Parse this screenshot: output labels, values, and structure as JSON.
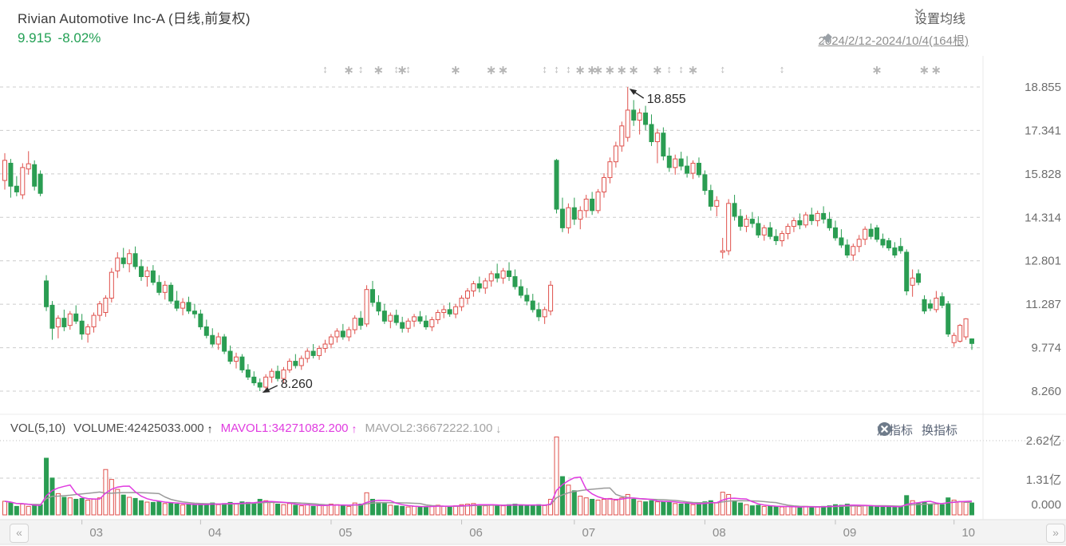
{
  "header": {
    "title": "Rivian Automotive Inc-A (日线,前复权)",
    "price": "9.915",
    "change": "-8.02%"
  },
  "controls": {
    "ma_settings_label": "设置均线",
    "date_range": "2024/2/12-2024/10/4(164根)"
  },
  "vol_header": {
    "vol": "VOL(5,10)",
    "volume": "VOLUME:42425033.000",
    "volume_arrow": "↑",
    "mavol1": "MAVOL1:34271082.200",
    "mavol1_arrow": "↑",
    "mavol2": "MAVOL2:36672222.100",
    "mavol2_arrow": "↓",
    "add_indicator": "加指标",
    "switch_indicator": "换指标"
  },
  "nav": {
    "prev": "«",
    "next": "»"
  },
  "chart_data": {
    "type": "candlestick+volume",
    "title": "Rivian Automotive Inc-A 日线 前复权 2024/2/12-2024/10/4 164根",
    "price_axis": {
      "labels": [
        "18.855",
        "17.341",
        "15.828",
        "14.314",
        "12.801",
        "11.287",
        "9.774",
        "8.260"
      ]
    },
    "volume_axis": {
      "labels": [
        "2.62亿",
        "1.31亿",
        "0.000"
      ]
    },
    "months": [
      {
        "label": "03",
        "start_index": 13
      },
      {
        "label": "04",
        "start_index": 33
      },
      {
        "label": "05",
        "start_index": 55
      },
      {
        "label": "06",
        "start_index": 77
      },
      {
        "label": "07",
        "start_index": 96
      },
      {
        "label": "08",
        "start_index": 118
      },
      {
        "label": "09",
        "start_index": 140
      },
      {
        "label": "10",
        "start_index": 160
      }
    ],
    "annotations": {
      "high_label": "18.855",
      "low_label": "8.260"
    },
    "markers": [
      {
        "i": 54,
        "t": "ud"
      },
      {
        "i": 58,
        "t": "st"
      },
      {
        "i": 60,
        "t": "ud"
      },
      {
        "i": 63,
        "t": "st"
      },
      {
        "i": 66,
        "t": "ud"
      },
      {
        "i": 67,
        "t": "st"
      },
      {
        "i": 68,
        "t": "ud"
      },
      {
        "i": 76,
        "t": "st"
      },
      {
        "i": 82,
        "t": "st"
      },
      {
        "i": 84,
        "t": "st"
      },
      {
        "i": 91,
        "t": "ud"
      },
      {
        "i": 93,
        "t": "ud"
      },
      {
        "i": 95,
        "t": "ud"
      },
      {
        "i": 97,
        "t": "st"
      },
      {
        "i": 99,
        "t": "st"
      },
      {
        "i": 100,
        "t": "st"
      },
      {
        "i": 102,
        "t": "st"
      },
      {
        "i": 104,
        "t": "st"
      },
      {
        "i": 106,
        "t": "st"
      },
      {
        "i": 110,
        "t": "st"
      },
      {
        "i": 112,
        "t": "ud"
      },
      {
        "i": 114,
        "t": "ud"
      },
      {
        "i": 116,
        "t": "st"
      },
      {
        "i": 121,
        "t": "ud"
      },
      {
        "i": 131,
        "t": "ud"
      },
      {
        "i": 147,
        "t": "st"
      },
      {
        "i": 155,
        "t": "st"
      },
      {
        "i": 157,
        "t": "st"
      }
    ],
    "colors": {
      "up": "#df514c",
      "down": "#2a9d52",
      "mavol1": "#e03ce0",
      "mavol2": "#9a9a9a",
      "grid": "#cccccc",
      "marker": "#b5b5b5",
      "quote_green": "#22a054"
    },
    "candles": [
      [
        15.6,
        16.55,
        15.28,
        16.3,
        0.48
      ],
      [
        16.2,
        16.35,
        15.0,
        15.4,
        0.42
      ],
      [
        15.4,
        15.75,
        15.05,
        15.2,
        0.3
      ],
      [
        15.1,
        16.2,
        14.95,
        16.05,
        0.38
      ],
      [
        16.0,
        16.62,
        15.8,
        16.18,
        0.3
      ],
      [
        16.15,
        16.3,
        15.25,
        15.4,
        0.33
      ],
      [
        15.82,
        15.95,
        15.05,
        15.15,
        0.36
      ],
      [
        12.1,
        12.3,
        11.05,
        11.2,
        2.0
      ],
      [
        11.25,
        11.4,
        10.05,
        10.45,
        1.3
      ],
      [
        10.5,
        10.9,
        10.1,
        10.8,
        0.75
      ],
      [
        10.8,
        11.1,
        10.35,
        10.5,
        0.62
      ],
      [
        10.55,
        11.05,
        10.4,
        10.95,
        0.6
      ],
      [
        10.95,
        11.25,
        10.6,
        10.7,
        0.55
      ],
      [
        10.7,
        10.95,
        10.05,
        10.25,
        0.58
      ],
      [
        10.25,
        10.6,
        9.95,
        10.5,
        0.52
      ],
      [
        10.5,
        11.0,
        10.3,
        10.9,
        0.55
      ],
      [
        10.9,
        11.4,
        10.7,
        11.3,
        0.6
      ],
      [
        11.0,
        11.6,
        10.85,
        11.5,
        1.6
      ],
      [
        11.5,
        12.55,
        11.35,
        12.4,
        1.25
      ],
      [
        12.45,
        13.1,
        12.2,
        12.9,
        0.9
      ],
      [
        12.9,
        13.25,
        12.55,
        12.7,
        0.7
      ],
      [
        12.7,
        13.2,
        12.4,
        13.05,
        0.62
      ],
      [
        13.05,
        13.3,
        12.5,
        12.6,
        0.58
      ],
      [
        12.6,
        12.85,
        12.1,
        12.25,
        0.5
      ],
      [
        12.25,
        12.6,
        11.9,
        12.45,
        0.45
      ],
      [
        12.45,
        12.65,
        11.95,
        12.05,
        0.44
      ],
      [
        12.05,
        12.3,
        11.6,
        11.7,
        0.46
      ],
      [
        11.7,
        12.1,
        11.45,
        11.95,
        0.4
      ],
      [
        11.95,
        12.05,
        11.3,
        11.4,
        0.42
      ],
      [
        11.4,
        11.75,
        11.05,
        11.15,
        0.38
      ],
      [
        11.15,
        11.5,
        10.9,
        11.35,
        0.35
      ],
      [
        11.35,
        11.55,
        10.95,
        11.05,
        0.36
      ],
      [
        11.05,
        11.3,
        10.8,
        10.95,
        0.34
      ],
      [
        10.95,
        11.1,
        10.4,
        10.5,
        0.4
      ],
      [
        10.5,
        10.75,
        10.1,
        10.2,
        0.38
      ],
      [
        10.2,
        10.45,
        9.8,
        9.9,
        0.42
      ],
      [
        9.9,
        10.3,
        9.7,
        10.15,
        0.36
      ],
      [
        10.15,
        10.25,
        9.55,
        9.65,
        0.4
      ],
      [
        9.65,
        9.85,
        9.2,
        9.3,
        0.44
      ],
      [
        9.3,
        9.6,
        9.05,
        9.45,
        0.38
      ],
      [
        9.45,
        9.55,
        8.9,
        9.0,
        0.46
      ],
      [
        9.0,
        9.2,
        8.65,
        8.75,
        0.44
      ],
      [
        8.75,
        8.95,
        8.45,
        8.55,
        0.42
      ],
      [
        8.55,
        8.7,
        8.26,
        8.4,
        0.55
      ],
      [
        8.4,
        8.85,
        8.3,
        8.75,
        0.5
      ],
      [
        8.75,
        9.05,
        8.55,
        8.95,
        0.44
      ],
      [
        8.95,
        9.15,
        8.6,
        8.7,
        0.38
      ],
      [
        8.7,
        9.1,
        8.55,
        9.0,
        0.36
      ],
      [
        9.0,
        9.4,
        8.9,
        9.3,
        0.4
      ],
      [
        9.3,
        9.55,
        9.05,
        9.15,
        0.34
      ],
      [
        9.15,
        9.5,
        9.0,
        9.4,
        0.32
      ],
      [
        9.4,
        9.75,
        9.25,
        9.65,
        0.36
      ],
      [
        9.65,
        9.9,
        9.4,
        9.5,
        0.3
      ],
      [
        9.5,
        9.85,
        9.35,
        9.75,
        0.33
      ],
      [
        9.75,
        10.05,
        9.6,
        9.9,
        0.35
      ],
      [
        9.9,
        10.25,
        9.75,
        10.15,
        0.38
      ],
      [
        10.15,
        10.45,
        9.95,
        10.35,
        0.36
      ],
      [
        10.35,
        10.6,
        10.05,
        10.15,
        0.32
      ],
      [
        10.15,
        10.5,
        10.0,
        10.4,
        0.3
      ],
      [
        10.4,
        10.9,
        10.25,
        10.8,
        0.42
      ],
      [
        10.8,
        11.05,
        10.4,
        10.55,
        0.38
      ],
      [
        10.6,
        11.95,
        10.5,
        11.8,
        0.78
      ],
      [
        11.8,
        12.1,
        11.2,
        11.35,
        0.55
      ],
      [
        11.35,
        11.6,
        10.9,
        11.05,
        0.44
      ],
      [
        11.05,
        11.3,
        10.6,
        10.7,
        0.4
      ],
      [
        10.7,
        11.0,
        10.45,
        10.9,
        0.34
      ],
      [
        10.9,
        11.1,
        10.55,
        10.65,
        0.32
      ],
      [
        10.65,
        10.85,
        10.3,
        10.45,
        0.3
      ],
      [
        10.45,
        10.8,
        10.3,
        10.7,
        0.28
      ],
      [
        10.7,
        10.95,
        10.5,
        10.85,
        0.3
      ],
      [
        10.85,
        11.05,
        10.6,
        10.7,
        0.28
      ],
      [
        10.7,
        10.9,
        10.4,
        10.5,
        0.3
      ],
      [
        10.5,
        10.85,
        10.35,
        10.75,
        0.32
      ],
      [
        10.75,
        11.1,
        10.6,
        11.0,
        0.34
      ],
      [
        11.0,
        11.25,
        10.8,
        11.1,
        0.3
      ],
      [
        11.1,
        11.35,
        10.85,
        10.95,
        0.28
      ],
      [
        10.95,
        11.3,
        10.8,
        11.2,
        0.32
      ],
      [
        11.2,
        11.6,
        11.05,
        11.5,
        0.36
      ],
      [
        11.5,
        11.85,
        11.3,
        11.75,
        0.38
      ],
      [
        11.75,
        12.1,
        11.55,
        12.0,
        0.4
      ],
      [
        12.0,
        12.25,
        11.7,
        11.85,
        0.34
      ],
      [
        11.85,
        12.2,
        11.65,
        12.1,
        0.32
      ],
      [
        12.1,
        12.45,
        11.9,
        12.35,
        0.36
      ],
      [
        12.35,
        12.7,
        12.05,
        12.2,
        0.34
      ],
      [
        12.2,
        12.55,
        12.0,
        12.45,
        0.32
      ],
      [
        12.45,
        12.75,
        12.1,
        12.25,
        0.36
      ],
      [
        12.25,
        12.5,
        11.8,
        11.9,
        0.38
      ],
      [
        11.9,
        12.15,
        11.5,
        11.6,
        0.34
      ],
      [
        11.6,
        11.85,
        11.25,
        11.4,
        0.32
      ],
      [
        11.4,
        11.65,
        11.0,
        11.1,
        0.34
      ],
      [
        11.1,
        11.35,
        10.7,
        10.85,
        0.36
      ],
      [
        10.85,
        11.2,
        10.6,
        11.1,
        0.33
      ],
      [
        11.05,
        12.1,
        10.9,
        11.95,
        0.55
      ],
      [
        16.3,
        16.35,
        14.45,
        14.6,
        2.75,
        1
      ],
      [
        14.6,
        15.0,
        13.8,
        13.95,
        1.35
      ],
      [
        13.95,
        14.8,
        13.75,
        14.65,
        1.05
      ],
      [
        14.65,
        15.0,
        14.05,
        14.25,
        0.85
      ],
      [
        14.25,
        14.7,
        13.9,
        14.55,
        0.66
      ],
      [
        14.55,
        15.1,
        14.3,
        14.95,
        0.6
      ],
      [
        14.95,
        15.2,
        14.4,
        14.55,
        0.55
      ],
      [
        14.55,
        15.3,
        14.45,
        15.2,
        0.52
      ],
      [
        15.2,
        15.85,
        15.0,
        15.7,
        0.55
      ],
      [
        15.7,
        16.4,
        15.5,
        16.25,
        0.58
      ],
      [
        16.25,
        16.95,
        16.05,
        16.8,
        0.52
      ],
      [
        16.8,
        17.65,
        16.6,
        17.5,
        0.6
      ],
      [
        17.1,
        18.855,
        16.95,
        18.05,
        0.72
      ],
      [
        18.05,
        18.4,
        17.5,
        17.7,
        0.55
      ],
      [
        17.7,
        18.1,
        17.2,
        17.95,
        0.48
      ],
      [
        17.95,
        18.2,
        17.35,
        17.55,
        0.46
      ],
      [
        17.55,
        17.9,
        16.8,
        16.95,
        0.5
      ],
      [
        16.95,
        17.4,
        16.2,
        17.25,
        0.46
      ],
      [
        17.25,
        17.45,
        16.3,
        16.45,
        0.48
      ],
      [
        16.45,
        16.75,
        15.9,
        16.05,
        0.44
      ],
      [
        16.05,
        16.5,
        15.8,
        16.35,
        0.4
      ],
      [
        16.35,
        16.6,
        15.95,
        16.1,
        0.38
      ],
      [
        16.1,
        16.45,
        15.7,
        15.85,
        0.4
      ],
      [
        15.85,
        16.3,
        15.65,
        16.2,
        0.36
      ],
      [
        16.2,
        16.4,
        15.7,
        15.8,
        0.42
      ],
      [
        15.8,
        15.95,
        15.1,
        15.25,
        0.46
      ],
      [
        15.25,
        15.45,
        14.55,
        14.7,
        0.5
      ],
      [
        14.7,
        15.05,
        14.35,
        14.9,
        0.42
      ],
      [
        13.1,
        13.6,
        12.88,
        13.15,
        0.8
      ],
      [
        13.15,
        14.95,
        13.0,
        14.8,
        0.72
      ],
      [
        14.8,
        15.1,
        14.2,
        14.35,
        0.5
      ],
      [
        14.35,
        14.6,
        13.85,
        14.0,
        0.42
      ],
      [
        14.0,
        14.4,
        13.8,
        14.25,
        0.36
      ],
      [
        14.25,
        14.5,
        13.95,
        14.1,
        0.32
      ],
      [
        14.1,
        14.35,
        13.6,
        13.7,
        0.34
      ],
      [
        13.7,
        14.05,
        13.5,
        13.95,
        0.3
      ],
      [
        13.95,
        14.15,
        13.55,
        13.65,
        0.3
      ],
      [
        13.65,
        13.9,
        13.35,
        13.5,
        0.28
      ],
      [
        13.5,
        13.85,
        13.3,
        13.75,
        0.28
      ],
      [
        13.75,
        14.1,
        13.55,
        14.0,
        0.3
      ],
      [
        14.0,
        14.3,
        13.8,
        14.2,
        0.28
      ],
      [
        14.2,
        14.45,
        13.9,
        14.05,
        0.26
      ],
      [
        14.05,
        14.5,
        13.95,
        14.4,
        0.3
      ],
      [
        14.4,
        14.65,
        14.05,
        14.2,
        0.28
      ],
      [
        14.2,
        14.55,
        14.0,
        14.45,
        0.28
      ],
      [
        14.45,
        14.7,
        14.1,
        14.25,
        0.3
      ],
      [
        14.25,
        14.5,
        13.85,
        13.95,
        0.32
      ],
      [
        13.95,
        14.2,
        13.5,
        13.6,
        0.36
      ],
      [
        13.6,
        13.9,
        13.25,
        13.35,
        0.34
      ],
      [
        13.35,
        13.55,
        12.9,
        13.0,
        0.38
      ],
      [
        13.0,
        13.4,
        12.8,
        13.3,
        0.32
      ],
      [
        13.3,
        13.7,
        13.1,
        13.55,
        0.3
      ],
      [
        13.55,
        14.0,
        13.35,
        13.9,
        0.34
      ],
      [
        13.9,
        14.1,
        13.55,
        13.65,
        0.3
      ],
      [
        13.95,
        14.05,
        13.45,
        13.55,
        0.28
      ],
      [
        13.55,
        13.75,
        13.25,
        13.35,
        0.3
      ],
      [
        13.5,
        13.6,
        13.15,
        13.25,
        0.28
      ],
      [
        13.25,
        13.45,
        12.9,
        13.0,
        0.3
      ],
      [
        13.3,
        13.6,
        13.05,
        13.15,
        0.28
      ],
      [
        13.1,
        13.2,
        11.6,
        11.75,
        0.68
      ],
      [
        11.95,
        12.5,
        11.55,
        12.2,
        0.5
      ],
      [
        12.35,
        12.5,
        11.95,
        12.05,
        0.4
      ],
      [
        11.45,
        11.6,
        10.95,
        11.05,
        0.46
      ],
      [
        11.3,
        11.45,
        11.05,
        11.15,
        0.36
      ],
      [
        11.1,
        11.75,
        11.0,
        11.5,
        0.38
      ],
      [
        11.55,
        11.7,
        11.15,
        11.25,
        0.36
      ],
      [
        11.3,
        11.4,
        10.15,
        10.25,
        0.6
      ],
      [
        9.95,
        10.3,
        9.8,
        10.2,
        0.52
      ],
      [
        10.0,
        10.6,
        9.95,
        10.55,
        0.46
      ],
      [
        10.15,
        10.8,
        10.05,
        10.78,
        0.44
      ],
      [
        10.08,
        10.1,
        9.7,
        9.92,
        0.42
      ]
    ]
  }
}
